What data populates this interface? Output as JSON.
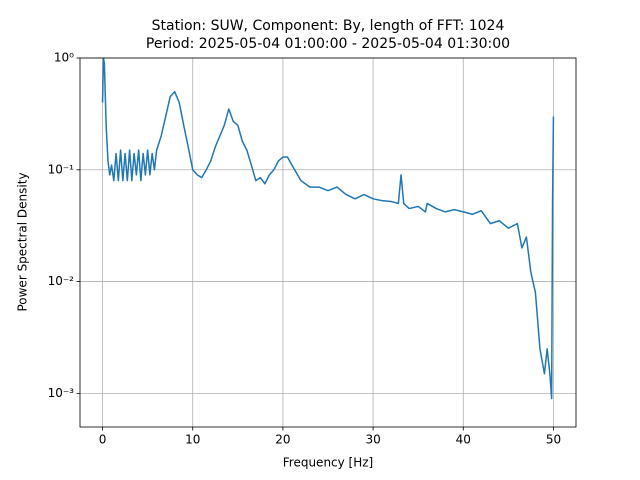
{
  "chart_data": {
    "type": "line",
    "title": "Station: SUW, Component: By, length of FFT: 1024",
    "subtitle": "Period: 2025-05-04 01:00:00 - 2025-05-04 01:30:00",
    "x_label": "Frequency [Hz]",
    "y_label": "Power Spectral Density",
    "log_y": true,
    "grid": true,
    "xlim": [
      -2.5,
      52.5
    ],
    "xticks": [
      0,
      10,
      20,
      30,
      40,
      50
    ],
    "ylim": [
      0.0005,
      1
    ],
    "yticks": [
      {
        "value": 0.001,
        "label": "10⁻³"
      },
      {
        "value": 0.01,
        "label": "10⁻²"
      },
      {
        "value": 0.1,
        "label": "10⁻¹"
      },
      {
        "value": 1,
        "label": "10⁰"
      }
    ],
    "series": [
      {
        "color": "#1f77b4",
        "x": [
          0,
          0.1,
          0.2,
          0.4,
          0.6,
          0.8,
          1,
          1.25,
          1.5,
          1.75,
          2,
          2.25,
          2.5,
          2.75,
          3,
          3.25,
          3.5,
          3.75,
          4,
          4.25,
          4.5,
          4.75,
          5,
          5.25,
          5.5,
          5.75,
          6,
          6.5,
          7,
          7.5,
          8,
          8.5,
          9,
          9.5,
          10,
          10.5,
          11,
          11.5,
          12,
          12.5,
          13,
          13.5,
          14,
          14.5,
          15,
          15.5,
          16,
          16.5,
          17,
          17.5,
          18,
          18.5,
          19,
          19.5,
          20,
          20.5,
          21,
          22,
          23,
          24,
          25,
          26,
          27,
          28,
          29,
          30,
          31,
          32,
          32.8,
          33.1,
          33.4,
          34,
          35,
          35.8,
          36,
          37,
          38,
          39,
          40,
          41,
          42,
          43,
          44,
          45,
          46,
          46.5,
          47,
          47.5,
          48,
          48.5,
          49,
          49.3,
          49.6,
          49.8,
          49.9,
          50
        ],
        "values": [
          0.4,
          1.0,
          0.9,
          0.25,
          0.12,
          0.09,
          0.11,
          0.08,
          0.14,
          0.08,
          0.15,
          0.08,
          0.14,
          0.08,
          0.15,
          0.08,
          0.14,
          0.09,
          0.15,
          0.08,
          0.14,
          0.09,
          0.15,
          0.09,
          0.14,
          0.1,
          0.15,
          0.2,
          0.3,
          0.45,
          0.5,
          0.4,
          0.25,
          0.16,
          0.1,
          0.09,
          0.085,
          0.1,
          0.12,
          0.16,
          0.2,
          0.25,
          0.35,
          0.27,
          0.25,
          0.18,
          0.15,
          0.11,
          0.08,
          0.085,
          0.075,
          0.09,
          0.1,
          0.12,
          0.13,
          0.13,
          0.11,
          0.08,
          0.07,
          0.07,
          0.065,
          0.07,
          0.06,
          0.055,
          0.06,
          0.055,
          0.053,
          0.052,
          0.05,
          0.09,
          0.05,
          0.045,
          0.047,
          0.042,
          0.05,
          0.045,
          0.042,
          0.044,
          0.042,
          0.04,
          0.043,
          0.033,
          0.035,
          0.03,
          0.033,
          0.02,
          0.025,
          0.012,
          0.008,
          0.0025,
          0.0015,
          0.0025,
          0.0015,
          0.0009,
          0.05,
          0.3
        ]
      }
    ]
  }
}
